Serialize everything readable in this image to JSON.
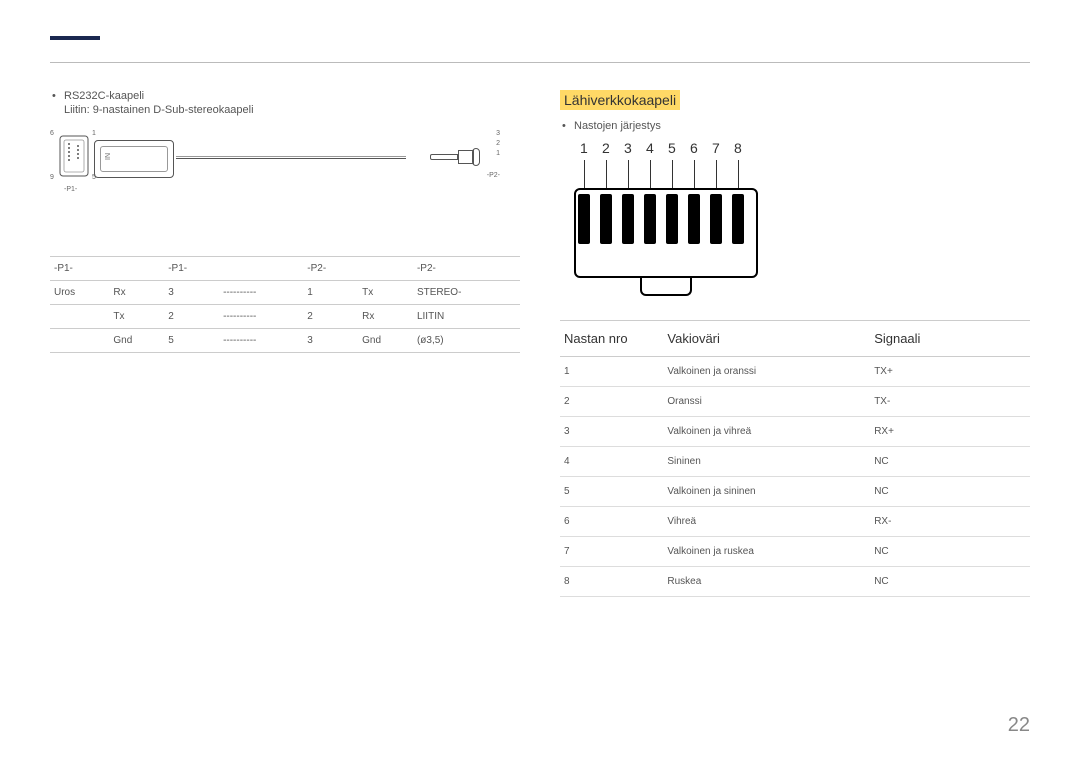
{
  "page_number": "22",
  "left": {
    "bullet": "RS232C-kaapeli",
    "sub": "Liitin: 9-nastainen D-Sub-stereokaapeli",
    "diagram": {
      "pins_left": [
        "6",
        "1",
        "9",
        "5"
      ],
      "left_footer": "-P1-",
      "pins_right": [
        "3",
        "2",
        "1"
      ],
      "right_footer": "-P2-"
    },
    "table": {
      "headers": [
        "-P1-",
        "",
        "-P1-",
        "",
        "-P2-",
        "",
        "-P2-"
      ],
      "rows": [
        [
          "Uros",
          "Rx",
          "3",
          "----------",
          "1",
          "Tx",
          "STEREO-"
        ],
        [
          "",
          "Tx",
          "2",
          "----------",
          "2",
          "Rx",
          "LIITIN"
        ],
        [
          "",
          "Gnd",
          "5",
          "----------",
          "3",
          "Gnd",
          "(ø3,5)"
        ]
      ]
    }
  },
  "right": {
    "heading": "Lähiverkkokaapeli",
    "bullet": "Nastojen järjestys",
    "rj45_numbers": [
      "1",
      "2",
      "3",
      "4",
      "5",
      "6",
      "7",
      "8"
    ],
    "table": {
      "headers": [
        "Nastan nro",
        "Vakioväri",
        "Signaali"
      ],
      "rows": [
        [
          "1",
          "Valkoinen ja oranssi",
          "TX+"
        ],
        [
          "2",
          "Oranssi",
          "TX-"
        ],
        [
          "3",
          "Valkoinen ja vihreä",
          "RX+"
        ],
        [
          "4",
          "Sininen",
          "NC"
        ],
        [
          "5",
          "Valkoinen ja sininen",
          "NC"
        ],
        [
          "6",
          "Vihreä",
          "RX-"
        ],
        [
          "7",
          "Valkoinen ja ruskea",
          "NC"
        ],
        [
          "8",
          "Ruskea",
          "NC"
        ]
      ],
      "col_widths": [
        "22%",
        "44%",
        "34%"
      ]
    }
  }
}
